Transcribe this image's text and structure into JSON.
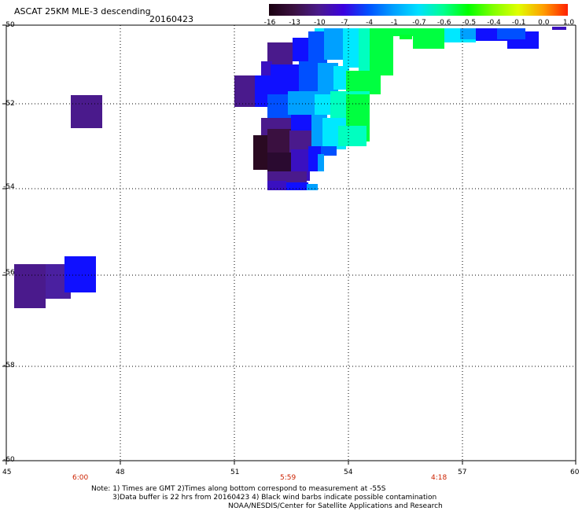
{
  "header": {
    "title": "ASCAT 25KM MLE-3 descending",
    "date": "20160423"
  },
  "colorbar": {
    "labels": [
      "-16",
      "-13",
      "-10",
      "-7",
      "-4",
      "-1",
      "-0.7",
      "-0.6",
      "-0.5",
      "-0.4",
      "-0.1",
      "0.0",
      "1.0"
    ],
    "colors": [
      "#1a0010",
      "#3a1040",
      "#4a1a8c",
      "#3a00e0",
      "#0050ff",
      "#00a0ff",
      "#00e0ff",
      "#00ff90",
      "#00ff00",
      "#80ff00",
      "#e0ff00",
      "#ffa000",
      "#ff2000"
    ]
  },
  "axes": {
    "x_ticks": [
      "45",
      "48",
      "51",
      "54",
      "57",
      "60"
    ],
    "y_ticks": [
      "-50",
      "-52",
      "-54",
      "-56",
      "-58",
      "-60"
    ]
  },
  "times": [
    "6:00",
    "5:59",
    "4:18"
  ],
  "notes": {
    "line1": "Note: 1) Times are GMT 2)Times along bottom correspond to measurement at -55S",
    "line2": "3)Data buffer is 22 hrs from 20160423 4) Black wind barbs indicate possible contamination",
    "line3": "NOAA/NESDIS/Center for Satellite Applications and Research"
  },
  "palette": {
    "dark": "#2a0a22",
    "purple": "#4a1a8c",
    "indigo": "#3a10c0",
    "blue": "#1010ff",
    "mid_blue": "#0050ff",
    "sky": "#00a0ff",
    "cyan": "#00e8ff",
    "aqua": "#00ffc0",
    "green": "#00ff40"
  }
}
